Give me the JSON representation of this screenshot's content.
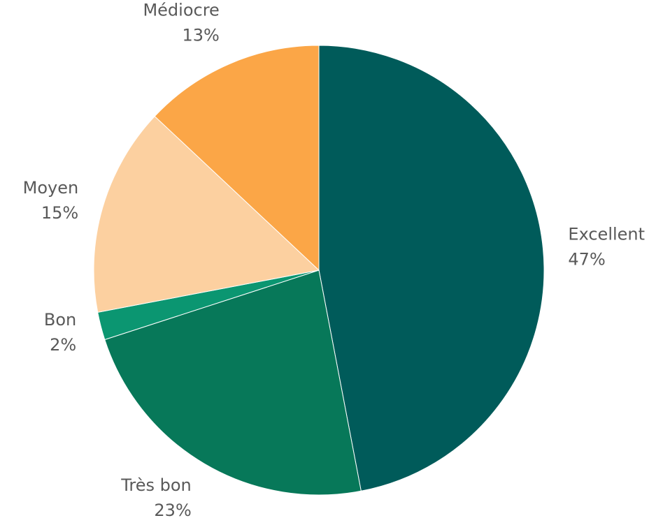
{
  "chart_data": {
    "type": "pie",
    "title": "",
    "start_angle_deg": 0,
    "direction": "clockwise",
    "slices": [
      {
        "label": "Excellent",
        "value": 47,
        "value_label": "47%",
        "color": "#005B5A"
      },
      {
        "label": "Très bon",
        "value": 23,
        "value_label": "23%",
        "color": "#077859"
      },
      {
        "label": "Bon",
        "value": 2,
        "value_label": "2%",
        "color": "#0B9671"
      },
      {
        "label": "Moyen",
        "value": 15,
        "value_label": "15%",
        "color": "#FCD0A0"
      },
      {
        "label": "Médiocre",
        "value": 13,
        "value_label": "13%",
        "color": "#FBA647"
      }
    ],
    "legend": "none",
    "label_color": "#595959",
    "slice_border_color": "#ffffff"
  }
}
